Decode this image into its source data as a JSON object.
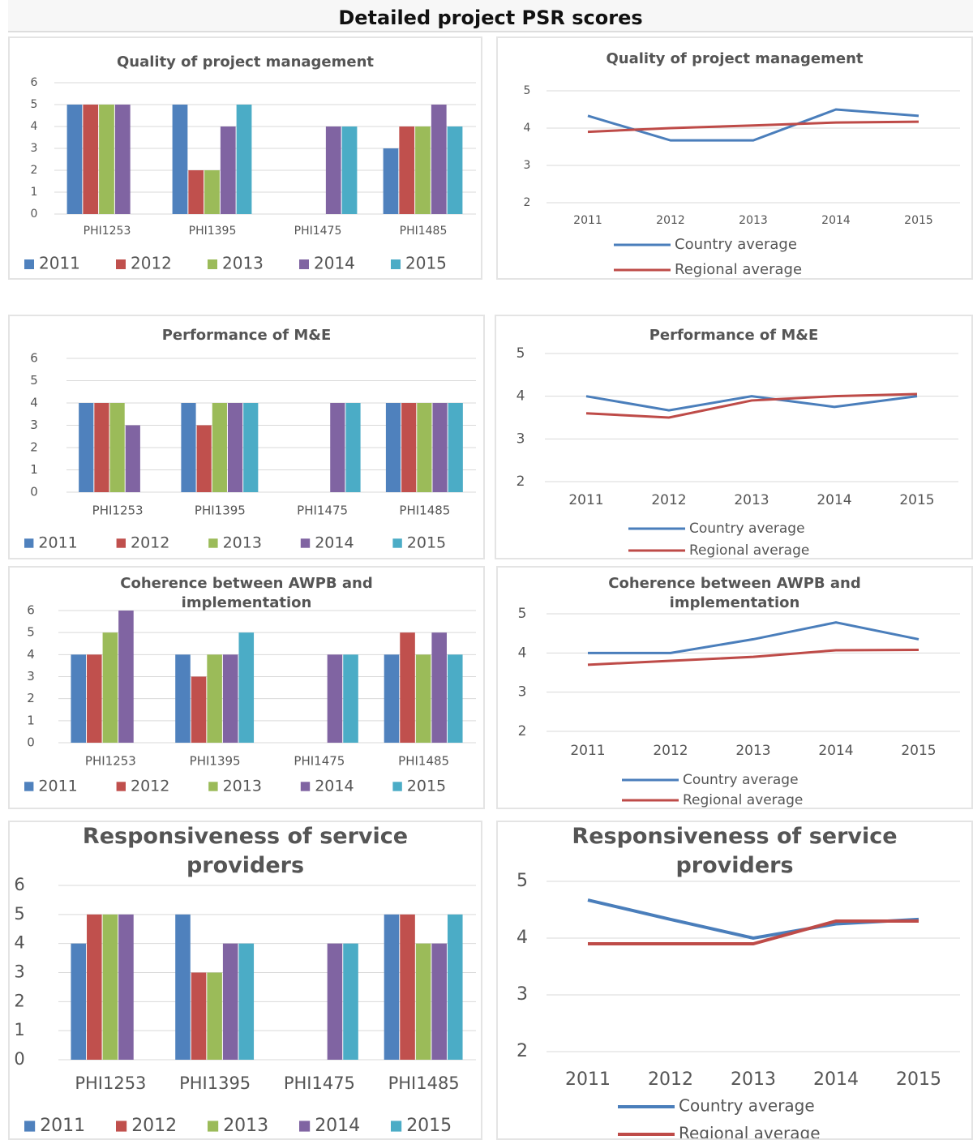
{
  "title": "Detailed project PSR scores",
  "chart_data": [
    {
      "type": "bar",
      "title": "Quality of project management",
      "categories": [
        "PHI1253",
        "PHI1395",
        "PHI1475",
        "PHI1485"
      ],
      "series": [
        {
          "name": "2011",
          "color": "#4f81bd",
          "values": [
            5,
            5,
            null,
            3
          ]
        },
        {
          "name": "2012",
          "color": "#c0504d",
          "values": [
            5,
            2,
            null,
            4
          ]
        },
        {
          "name": "2013",
          "color": "#9bbb59",
          "values": [
            5,
            2,
            null,
            4
          ]
        },
        {
          "name": "2014",
          "color": "#8064a2",
          "values": [
            5,
            4,
            4,
            5
          ]
        },
        {
          "name": "2015",
          "color": "#4bacc6",
          "values": [
            null,
            5,
            4,
            4
          ]
        }
      ],
      "ylim": [
        0,
        6
      ],
      "yticks": [
        0,
        1,
        2,
        3,
        4,
        5,
        6
      ],
      "grid": true,
      "legend": "bottom"
    },
    {
      "type": "line",
      "title": "Quality of project management",
      "categories": [
        "2011",
        "2012",
        "2013",
        "2014",
        "2015"
      ],
      "series": [
        {
          "name": "Country average",
          "color": "#4a7ebb",
          "values": [
            4.33,
            3.67,
            3.67,
            4.5,
            4.33
          ]
        },
        {
          "name": "Regional average",
          "color": "#be4b48",
          "values": [
            3.9,
            4.0,
            4.07,
            4.15,
            4.17
          ]
        }
      ],
      "ylim": [
        2,
        5
      ],
      "yticks": [
        2,
        3,
        4,
        5
      ],
      "grid": true,
      "legend": "bottom"
    },
    {
      "type": "bar",
      "title": "Performance of M&E",
      "categories": [
        "PHI1253",
        "PHI1395",
        "PHI1475",
        "PHI1485"
      ],
      "series": [
        {
          "name": "2011",
          "color": "#4f81bd",
          "values": [
            4,
            4,
            null,
            4
          ]
        },
        {
          "name": "2012",
          "color": "#c0504d",
          "values": [
            4,
            3,
            null,
            4
          ]
        },
        {
          "name": "2013",
          "color": "#9bbb59",
          "values": [
            4,
            4,
            null,
            4
          ]
        },
        {
          "name": "2014",
          "color": "#8064a2",
          "values": [
            3,
            4,
            4,
            4
          ]
        },
        {
          "name": "2015",
          "color": "#4bacc6",
          "values": [
            null,
            4,
            4,
            4
          ]
        }
      ],
      "ylim": [
        0,
        6
      ],
      "yticks": [
        0,
        1,
        2,
        3,
        4,
        5,
        6
      ],
      "grid": true,
      "legend": "bottom"
    },
    {
      "type": "line",
      "title": "Performance of M&E",
      "categories": [
        "2011",
        "2012",
        "2013",
        "2014",
        "2015"
      ],
      "series": [
        {
          "name": "Country average",
          "color": "#4a7ebb",
          "values": [
            4.0,
            3.67,
            4.0,
            3.75,
            4.0
          ]
        },
        {
          "name": "Regional average",
          "color": "#be4b48",
          "values": [
            3.6,
            3.5,
            3.9,
            4.0,
            4.05
          ]
        }
      ],
      "ylim": [
        2,
        5
      ],
      "yticks": [
        2,
        3,
        4,
        5
      ],
      "grid": true,
      "legend": "bottom"
    },
    {
      "type": "bar",
      "title": "Coherence between AWPB and implementation",
      "categories": [
        "PHI1253",
        "PHI1395",
        "PHI1475",
        "PHI1485"
      ],
      "series": [
        {
          "name": "2011",
          "color": "#4f81bd",
          "values": [
            4,
            4,
            null,
            4
          ]
        },
        {
          "name": "2012",
          "color": "#c0504d",
          "values": [
            4,
            3,
            null,
            5
          ]
        },
        {
          "name": "2013",
          "color": "#9bbb59",
          "values": [
            5,
            4,
            null,
            4
          ]
        },
        {
          "name": "2014",
          "color": "#8064a2",
          "values": [
            6,
            4,
            4,
            5
          ]
        },
        {
          "name": "2015",
          "color": "#4bacc6",
          "values": [
            null,
            5,
            4,
            4
          ]
        }
      ],
      "ylim": [
        0,
        6
      ],
      "yticks": [
        0,
        1,
        2,
        3,
        4,
        5,
        6
      ],
      "grid": true,
      "legend": "bottom"
    },
    {
      "type": "line",
      "title": "Coherence between AWPB and implementation",
      "categories": [
        "2011",
        "2012",
        "2013",
        "2014",
        "2015"
      ],
      "series": [
        {
          "name": "Country average",
          "color": "#4a7ebb",
          "values": [
            4.0,
            4.0,
            4.35,
            4.78,
            4.35
          ]
        },
        {
          "name": "Regional average",
          "color": "#be4b48",
          "values": [
            3.7,
            3.8,
            3.9,
            4.07,
            4.08
          ]
        }
      ],
      "ylim": [
        2,
        5
      ],
      "yticks": [
        2,
        3,
        4,
        5
      ],
      "grid": true,
      "legend": "bottom"
    },
    {
      "type": "bar",
      "title": "Responsiveness of service providers",
      "categories": [
        "PHI1253",
        "PHI1395",
        "PHI1475",
        "PHI1485"
      ],
      "series": [
        {
          "name": "2011",
          "color": "#4f81bd",
          "values": [
            4,
            5,
            null,
            5
          ]
        },
        {
          "name": "2012",
          "color": "#c0504d",
          "values": [
            5,
            3,
            null,
            5
          ]
        },
        {
          "name": "2013",
          "color": "#9bbb59",
          "values": [
            5,
            3,
            null,
            4
          ]
        },
        {
          "name": "2014",
          "color": "#8064a2",
          "values": [
            5,
            4,
            4,
            4
          ]
        },
        {
          "name": "2015",
          "color": "#4bacc6",
          "values": [
            null,
            4,
            4,
            5
          ]
        }
      ],
      "ylim": [
        0,
        6
      ],
      "yticks": [
        0,
        1,
        2,
        3,
        4,
        5,
        6
      ],
      "grid": true,
      "legend": "bottom"
    },
    {
      "type": "line",
      "title": "Responsiveness of service providers",
      "categories": [
        "2011",
        "2012",
        "2013",
        "2014",
        "2015"
      ],
      "series": [
        {
          "name": "Country average",
          "color": "#4a7ebb",
          "values": [
            4.67,
            4.33,
            4.0,
            4.25,
            4.33
          ]
        },
        {
          "name": "Regional average",
          "color": "#be4b48",
          "values": [
            3.9,
            3.9,
            3.9,
            4.3,
            4.3
          ]
        }
      ],
      "ylim": [
        2,
        5
      ],
      "yticks": [
        2,
        3,
        4,
        5
      ],
      "grid": true,
      "legend": "bottom"
    }
  ]
}
